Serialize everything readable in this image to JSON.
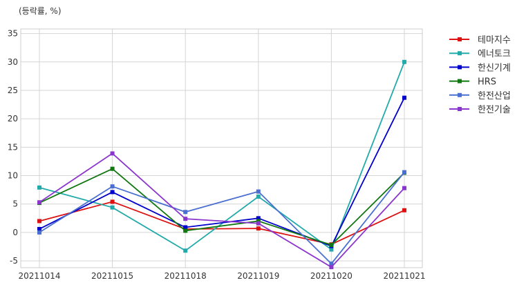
{
  "chart_data": {
    "type": "line",
    "ylabel": "(등락률, %)",
    "categories": [
      "20211014",
      "20211015",
      "20211018",
      "20211019",
      "20211020",
      "20211021"
    ],
    "ylim": [
      -6.2,
      35.8
    ],
    "yticks": [
      -5,
      0,
      5,
      10,
      15,
      20,
      25,
      30,
      35
    ],
    "grid": true,
    "legend_position": "right-top",
    "series": [
      {
        "name": "테마지수",
        "color": "#dd1111",
        "values": [
          2.0,
          5.4,
          0.6,
          0.7,
          -2.1,
          3.9
        ]
      },
      {
        "name": "에너토크",
        "color": "#22aaaa",
        "values": [
          7.9,
          4.4,
          -3.2,
          6.3,
          -3.0,
          30.0
        ]
      },
      {
        "name": "한신기계",
        "color": "#0000cc",
        "values": [
          0.6,
          7.1,
          0.9,
          2.5,
          -2.4,
          23.7
        ]
      },
      {
        "name": "HRS",
        "color": "#117711",
        "values": [
          5.2,
          11.2,
          0.3,
          2.0,
          -2.2,
          10.5
        ]
      },
      {
        "name": "한전산업",
        "color": "#4a6fd0",
        "values": [
          0.0,
          8.1,
          3.6,
          7.2,
          -5.5,
          10.6
        ]
      },
      {
        "name": "한전기술",
        "color": "#8a35cc",
        "values": [
          5.3,
          13.9,
          2.4,
          1.6,
          -6.1,
          7.8
        ]
      }
    ]
  }
}
